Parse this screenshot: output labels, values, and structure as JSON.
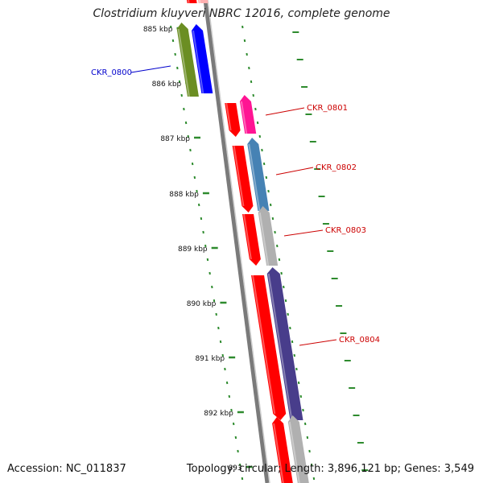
{
  "title": "Clostridium kluyveri NBRC 12016, complete genome",
  "footer": {
    "accession": "Accession: NC_011837",
    "topology": "Topology: circular; Length: 3,896,121 bp; Genes: 3,549"
  },
  "scale_ticks": [
    {
      "label": "885 kbp"
    },
    {
      "label": "886 kbp"
    },
    {
      "label": "887 kbp"
    },
    {
      "label": "888 kbp"
    },
    {
      "label": "889 kbp"
    },
    {
      "label": "890 kbp"
    },
    {
      "label": "891 kbp"
    },
    {
      "label": "892 kbp"
    },
    {
      "label": "893"
    }
  ],
  "gene_labels": [
    {
      "name": "CKR_0800",
      "color": "#0000cc"
    },
    {
      "name": "CKR_0801",
      "color": "#cc0000"
    },
    {
      "name": "CKR_0802",
      "color": "#cc0000"
    },
    {
      "name": "CKR_0803",
      "color": "#cc0000"
    },
    {
      "name": "CKR_0804",
      "color": "#cc0000"
    }
  ],
  "colors": {
    "backbone": "#7a7a7a",
    "tick_green": "#2e8b2e",
    "cds_red": "#ff0000",
    "olive": "#6b8e23",
    "blue": "#0000ff",
    "magenta": "#ff1493",
    "steelblue": "#4682b4",
    "gray": "#b0b0b0",
    "purple": "#483d8b",
    "pink": "#ffb0b0"
  }
}
